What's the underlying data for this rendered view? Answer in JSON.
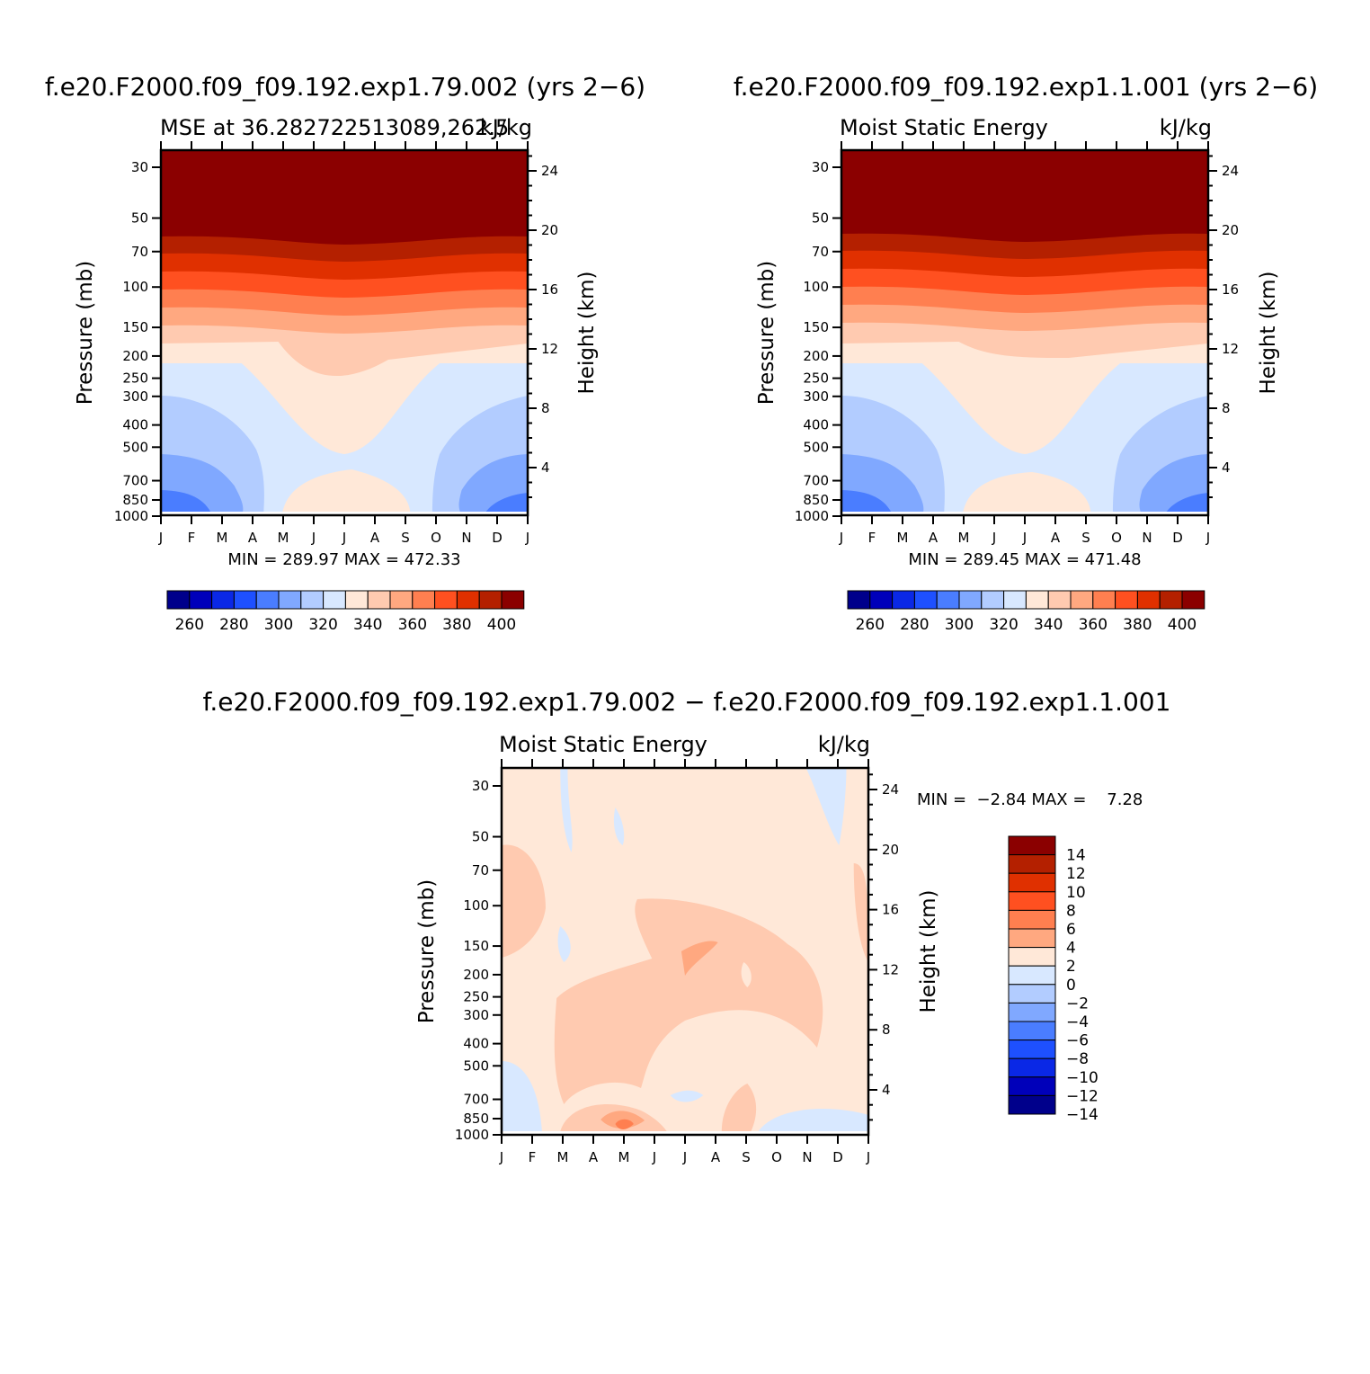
{
  "chart_data": [
    {
      "type": "contour",
      "title": "f.e20.F2000.f09_f09.192.exp1.79.002 (yrs 2−6)",
      "subtitle_left": "MSE at 36.282722513089,262.5",
      "subtitle_right": "kJ/kg",
      "ylabel": "Pressure (mb)",
      "ylabel_right": "Height (km)",
      "x_ticks": [
        "J",
        "F",
        "M",
        "A",
        "M",
        "J",
        "J",
        "A",
        "S",
        "O",
        "N",
        "D",
        "J"
      ],
      "pressure_ticks": [
        30,
        50,
        70,
        100,
        150,
        200,
        250,
        300,
        400,
        500,
        700,
        850,
        1000
      ],
      "height_ticks": [
        4,
        8,
        12,
        16,
        20,
        24
      ],
      "min_max_text": "MIN = 289.97 MAX = 472.33",
      "colorbar_ticks": [
        260,
        280,
        300,
        320,
        340,
        360,
        380,
        400
      ],
      "levels": [
        250,
        260,
        270,
        280,
        290,
        300,
        310,
        320,
        330,
        340,
        350,
        360,
        370,
        380,
        390,
        400
      ]
    },
    {
      "type": "contour",
      "title": "f.e20.F2000.f09_f09.192.exp1.1.001 (yrs 2−6)",
      "subtitle_left": "Moist Static Energy",
      "subtitle_right": "kJ/kg",
      "ylabel": "Pressure (mb)",
      "ylabel_right": "Height (km)",
      "x_ticks": [
        "J",
        "F",
        "M",
        "A",
        "M",
        "J",
        "J",
        "A",
        "S",
        "O",
        "N",
        "D",
        "J"
      ],
      "pressure_ticks": [
        30,
        50,
        70,
        100,
        150,
        200,
        250,
        300,
        400,
        500,
        700,
        850,
        1000
      ],
      "height_ticks": [
        4,
        8,
        12,
        16,
        20,
        24
      ],
      "min_max_text": "MIN = 289.45 MAX = 471.48",
      "colorbar_ticks": [
        260,
        280,
        300,
        320,
        340,
        360,
        380,
        400
      ],
      "levels": [
        250,
        260,
        270,
        280,
        290,
        300,
        310,
        320,
        330,
        340,
        350,
        360,
        370,
        380,
        390,
        400
      ]
    },
    {
      "type": "contour",
      "title": "f.e20.F2000.f09_f09.192.exp1.79.002 − f.e20.F2000.f09_f09.192.exp1.1.001",
      "subtitle_left": "Moist Static Energy",
      "subtitle_right": "kJ/kg",
      "ylabel": "Pressure (mb)",
      "ylabel_right": "Height (km)",
      "x_ticks": [
        "J",
        "F",
        "M",
        "A",
        "M",
        "J",
        "J",
        "A",
        "S",
        "O",
        "N",
        "D",
        "J"
      ],
      "pressure_ticks": [
        30,
        50,
        70,
        100,
        150,
        200,
        250,
        300,
        400,
        500,
        700,
        850,
        1000
      ],
      "height_ticks": [
        4,
        8,
        12,
        16,
        20,
        24
      ],
      "min_max_text": "MIN =  −2.84 MAX =    7.28",
      "colorbar_ticks": [
        "14",
        "12",
        "10",
        "8",
        "6",
        "4",
        "2",
        "0",
        "−2",
        "−4",
        "−6",
        "−8",
        "−10",
        "−12",
        "−14"
      ]
    }
  ],
  "colors": {
    "abs_scale": [
      "#00008b",
      "#0000ba",
      "#0a28e6",
      "#1e50ff",
      "#4a7dff",
      "#80a8ff",
      "#b2ccff",
      "#d8e8ff",
      "#ffe8d8",
      "#ffcab0",
      "#ffa880",
      "#ff7f50",
      "#ff5020",
      "#e03000",
      "#b42000",
      "#8b0000"
    ],
    "diff_scale": [
      "#8b0000",
      "#b42000",
      "#e03000",
      "#ff5020",
      "#ff7f50",
      "#ffa880",
      "#ffe8d8",
      "#d8e8ff",
      "#b2ccff",
      "#80a8ff",
      "#4a7dff",
      "#1e50ff",
      "#0a28e6",
      "#0000ba",
      "#00008b"
    ],
    "diff_fill": {
      "zero_to_two": "#ffe8d8",
      "two_to_four": "#ffcab0",
      "four_to_six": "#ffa880",
      "six_to_eight": "#ff7f50",
      "neg": "#d8e8ff",
      "neg2": "#b2ccff"
    }
  }
}
